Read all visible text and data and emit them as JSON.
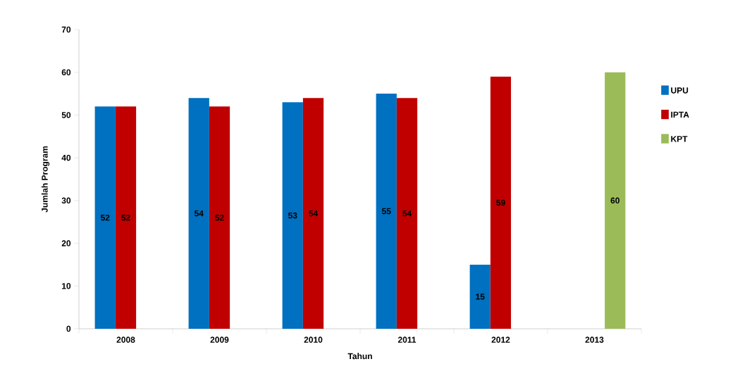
{
  "chart_data": {
    "type": "bar",
    "xlabel": "Tahun",
    "ylabel": "Jumlah Program",
    "categories": [
      "2008",
      "2009",
      "2010",
      "2011",
      "2012",
      "2013"
    ],
    "series": [
      {
        "name": "UPU",
        "color": "#0070c0",
        "values": [
          52,
          54,
          53,
          55,
          15,
          null
        ]
      },
      {
        "name": "IPTA",
        "color": "#c00000",
        "values": [
          52,
          52,
          54,
          54,
          59,
          null
        ]
      },
      {
        "name": "KPT",
        "color": "#9bbb59",
        "values": [
          null,
          null,
          null,
          null,
          null,
          60
        ]
      }
    ],
    "ylim": [
      0,
      70
    ],
    "yticks": [
      0,
      10,
      20,
      30,
      40,
      50,
      60,
      70
    ],
    "grid": false,
    "legend": "right",
    "data_labels": true
  }
}
